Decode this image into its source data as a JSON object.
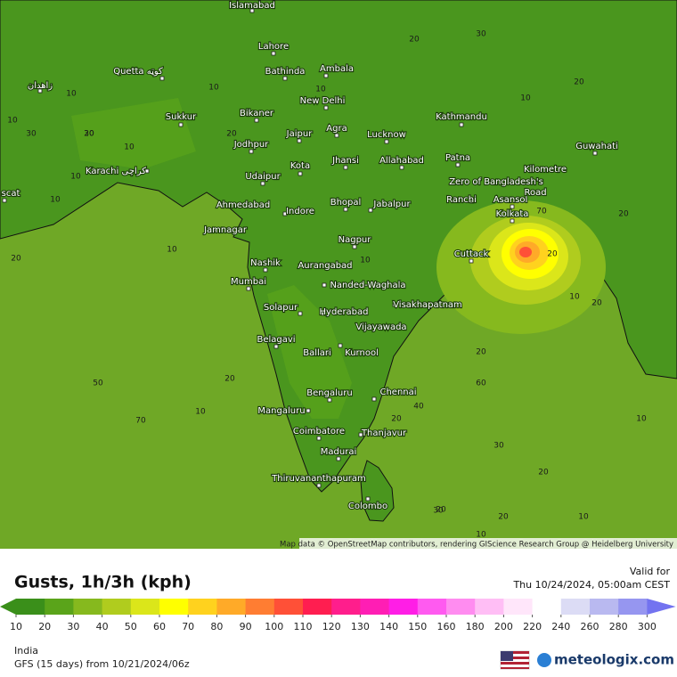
{
  "map": {
    "attribution": "Map data © OpenStreetMap contributors, rendering GIScience Research Group @ Heidelberg University",
    "cities": [
      "Islamabad",
      "Lahore",
      "Quetta کوټه",
      "Bathinda",
      "Ambala",
      "زاهدان",
      "New Delhi",
      "Bikaner",
      "Sukkur",
      "Jaipur",
      "Agra",
      "Lucknow",
      "Kathmandu",
      "Patna",
      "Guwahati",
      "Jodhpur",
      "Jhansi",
      "Allahabad",
      "Kota",
      "Karachi کراچی",
      "Udaipur",
      "Bhopal",
      "Jabalpur",
      "Ranchi",
      "Asansol",
      "Kolkata",
      "Kilometre",
      "Zero of Bangladesh's",
      "Road",
      "Ahmedabad",
      "Indore",
      "Jamnagar",
      "Nagpur",
      "Cuttack",
      "Nashik",
      "Aurangabad",
      "Mumbai",
      "Nanded-Waghala",
      "Visakhapatnam",
      "Solapur",
      "Hyderabad",
      "Vijayawada",
      "Belagavi",
      "Ballari",
      "Kurnool",
      "Bengaluru",
      "Chennai",
      "Mangaluru",
      "Coimbatore",
      "Thanjavur",
      "Madurai",
      "Thiruvananthapuram",
      "Colombo",
      "scat"
    ],
    "contour_labels": [
      20,
      30,
      10,
      10,
      20,
      10,
      30,
      20,
      10,
      20,
      10,
      10,
      20,
      10,
      10,
      20,
      10,
      70,
      50,
      40,
      30,
      60,
      20,
      10,
      20,
      20,
      10,
      10,
      20,
      20,
      10,
      20,
      20,
      30,
      30,
      10,
      10,
      20,
      70
    ]
  },
  "legend": {
    "title": "Gusts, 1h/3h (kph)",
    "valid_label": "Valid for",
    "valid_time": "Thu 10/24/2024, 05:00am CEST",
    "scale": [
      {
        "value": 10,
        "color": "#3a8f1a"
      },
      {
        "value": 20,
        "color": "#5aa41a"
      },
      {
        "value": 30,
        "color": "#86b91e"
      },
      {
        "value": 40,
        "color": "#b0cc1e"
      },
      {
        "value": 50,
        "color": "#dbe61a"
      },
      {
        "value": 60,
        "color": "#ffff00"
      },
      {
        "value": 70,
        "color": "#ffd21e"
      },
      {
        "value": 80,
        "color": "#ffaa28"
      },
      {
        "value": 90,
        "color": "#ff7d32"
      },
      {
        "value": 100,
        "color": "#ff5037"
      },
      {
        "value": 110,
        "color": "#ff1e50"
      },
      {
        "value": 120,
        "color": "#ff1e8c"
      },
      {
        "value": 130,
        "color": "#ff1eb4"
      },
      {
        "value": 140,
        "color": "#ff1ee6"
      },
      {
        "value": 150,
        "color": "#ff5af0"
      },
      {
        "value": 160,
        "color": "#ff8cf0"
      },
      {
        "value": 180,
        "color": "#ffbef5"
      },
      {
        "value": 200,
        "color": "#ffe6fa"
      },
      {
        "value": 220,
        "color": "#ffffff"
      },
      {
        "value": 240,
        "color": "#dcdcf5"
      },
      {
        "value": 260,
        "color": "#b9b9f0"
      },
      {
        "value": 280,
        "color": "#9696f0"
      },
      {
        "value": 300,
        "color": "#7373f0"
      }
    ]
  },
  "footer": {
    "region": "India",
    "model": "GFS (15 days) from 10/21/2024/06z",
    "brand": "meteologix.com"
  }
}
